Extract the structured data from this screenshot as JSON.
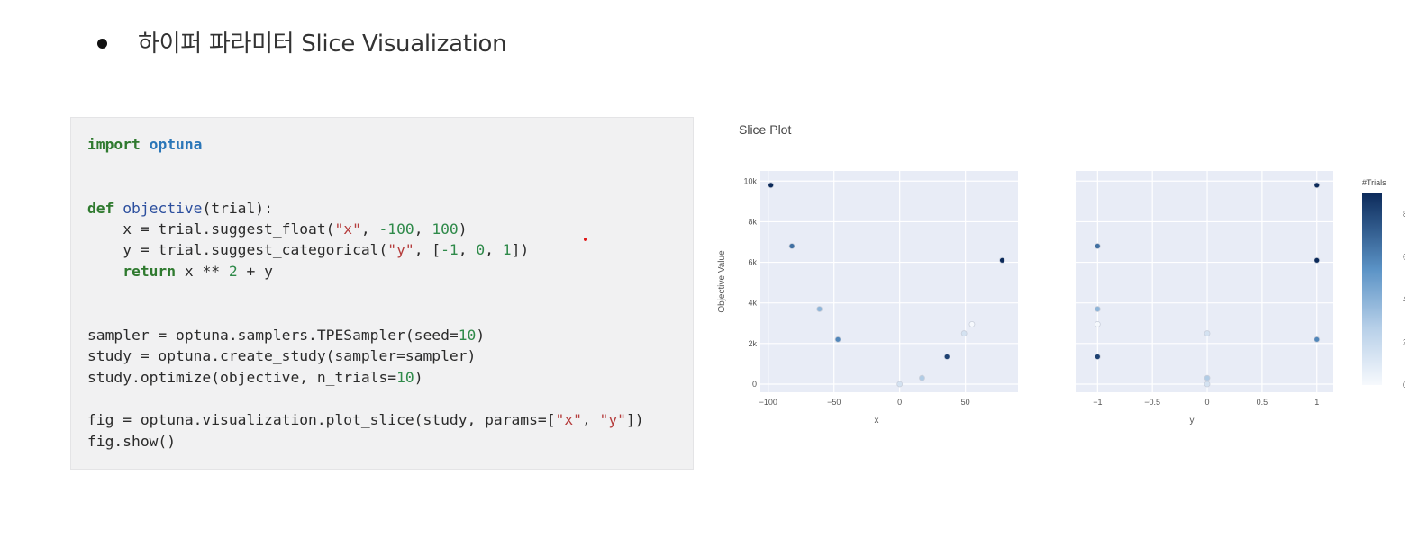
{
  "heading": {
    "text": "하이퍼 파라미터 Slice Visualization"
  },
  "code": {
    "l1_kw": "import",
    "l1_mod": "optuna",
    "l2_kw": "def",
    "l2_fn": "objective",
    "l2_rest": "(trial):",
    "l3_a": "    x = trial.suggest_float(",
    "l3_s": "\"x\"",
    "l3_b": ", ",
    "l3_n1": "-100",
    "l3_c": ", ",
    "l3_n2": "100",
    "l3_d": ")",
    "l4_a": "    y = trial.suggest_categorical(",
    "l4_s": "\"y\"",
    "l4_b": ", [",
    "l4_n1": "-1",
    "l4_c": ", ",
    "l4_n2": "0",
    "l4_d": ", ",
    "l4_n3": "1",
    "l4_e": "])",
    "l5_kw": "    return",
    "l5_a": " x ** ",
    "l5_n": "2",
    "l5_b": " + y",
    "l6_a": "sampler = optuna.samplers.TPESampler(seed=",
    "l6_n": "10",
    "l6_b": ")",
    "l7": "study = optuna.create_study(sampler=sampler)",
    "l8_a": "study.optimize(objective, n_trials=",
    "l8_n": "10",
    "l8_b": ")",
    "l9_a": "fig = optuna.visualization.plot_slice(study, params=[",
    "l9_s1": "\"x\"",
    "l9_b": ", ",
    "l9_s2": "\"y\"",
    "l9_c": "])",
    "l10": "fig.show()"
  },
  "chart_data": {
    "type": "scatter",
    "title": "Slice Plot",
    "ylabel": "Objective Value",
    "ylim": [
      -400,
      10500
    ],
    "yticks": [
      0,
      2000,
      4000,
      6000,
      8000,
      10000
    ],
    "ytick_labels": [
      "0",
      "2k",
      "4k",
      "6k",
      "8k",
      "10k"
    ],
    "colorbar": {
      "title": "#Trials",
      "range": [
        0,
        9
      ],
      "ticks": [
        0,
        2,
        4,
        6,
        8
      ],
      "tick_labels": [
        "0",
        "2",
        "4",
        "6",
        "8"
      ]
    },
    "subplots": [
      {
        "xlabel": "x",
        "xlim": [
          -106,
          90
        ],
        "xticks": [
          -100,
          -50,
          0,
          50
        ],
        "xtick_labels": [
          "−100",
          "−50",
          "0",
          "50"
        ],
        "points": [
          {
            "x": -98,
            "y": 9800,
            "trial": 9
          },
          {
            "x": -82,
            "y": 6800,
            "trial": 6
          },
          {
            "x": -61,
            "y": 3700,
            "trial": 3
          },
          {
            "x": -47,
            "y": 2200,
            "trial": 5
          },
          {
            "x": 0,
            "y": 0,
            "trial": 1
          },
          {
            "x": 17,
            "y": 300,
            "trial": 2
          },
          {
            "x": 36,
            "y": 1350,
            "trial": 8
          },
          {
            "x": 49,
            "y": 2500,
            "trial": 1
          },
          {
            "x": 55,
            "y": 2950,
            "trial": 0
          },
          {
            "x": 78,
            "y": 6100,
            "trial": 9
          }
        ]
      },
      {
        "xlabel": "y",
        "xlim": [
          -1.2,
          1.15
        ],
        "xticks": [
          -1,
          -0.5,
          0,
          0.5,
          1
        ],
        "xtick_labels": [
          "−1",
          "−0.5",
          "0",
          "0.5",
          "1"
        ],
        "points": [
          {
            "x": -1,
            "y": 6800,
            "trial": 6
          },
          {
            "x": -1,
            "y": 3700,
            "trial": 3
          },
          {
            "x": -1,
            "y": 2950,
            "trial": 0
          },
          {
            "x": -1,
            "y": 1350,
            "trial": 8
          },
          {
            "x": 0,
            "y": 2500,
            "trial": 1
          },
          {
            "x": 0,
            "y": 300,
            "trial": 2
          },
          {
            "x": 0,
            "y": 0,
            "trial": 1
          },
          {
            "x": 1,
            "y": 9800,
            "trial": 9
          },
          {
            "x": 1,
            "y": 6100,
            "trial": 9
          },
          {
            "x": 1,
            "y": 2200,
            "trial": 5
          }
        ]
      }
    ]
  }
}
